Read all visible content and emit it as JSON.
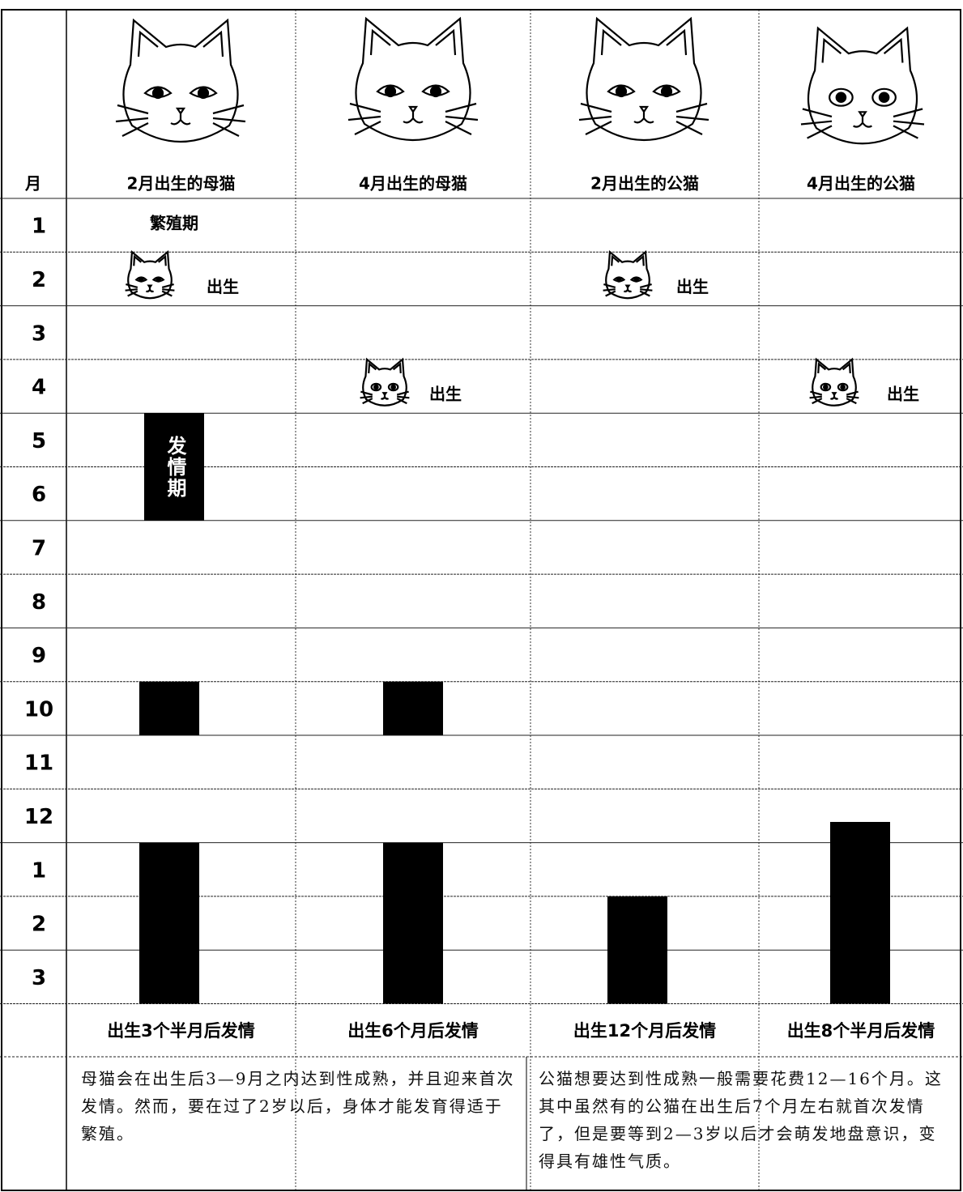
{
  "header": {
    "month_label": "月",
    "columns": [
      "2月出生的母猫",
      "4月出生的母猫",
      "2月出生的公猫",
      "4月出生的公猫"
    ]
  },
  "months": [
    "1",
    "2",
    "3",
    "4",
    "5",
    "6",
    "7",
    "8",
    "9",
    "10",
    "11",
    "12",
    "1",
    "2",
    "3"
  ],
  "annotations": {
    "breeding_season": "繁殖期",
    "birth": [
      "出生",
      "出生",
      "出生",
      "出生"
    ],
    "estrus_period": "发情期"
  },
  "summary": [
    "出生3个半月后发情",
    "出生6个月后发情",
    "出生12个月后发情",
    "出生8个半月后发情"
  ],
  "notes": [
    "母猫会在出生后3—9月之内达到性成熟，并且迎来首次发情。然而，要在过了2岁以后，身体才能发育得适于繁殖。",
    "公猫想要达到性成熟一般需要花费12—16个月。这其中虽然有的公猫在出生后7个月左右就首次发情了，但是要等到2—3岁以后才会萌发地盘意识，变得具有雄性气质。"
  ]
}
